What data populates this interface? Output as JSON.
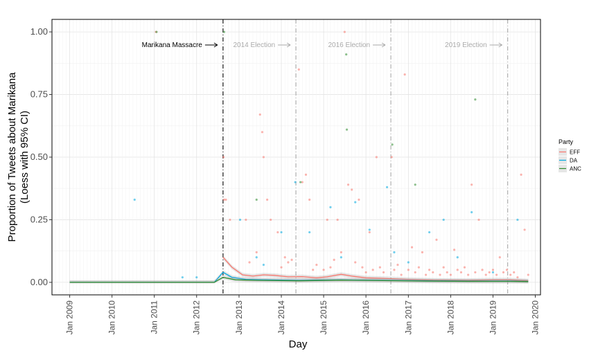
{
  "chart_data": {
    "type": "scatter",
    "xlabel": "Day",
    "ylabel_lines": [
      "Proportion of Tweets about Marikana",
      "(Loess with 95% CI)"
    ],
    "xlim": [
      "2008-08-01",
      "2020-02-15"
    ],
    "ylim": [
      -0.05,
      1.05
    ],
    "y_ticks": [
      0,
      0.25,
      0.5,
      0.75,
      1.0
    ],
    "y_tick_labels": [
      "0.00",
      "0.25",
      "0.50",
      "0.75",
      "1.00"
    ],
    "x_ticks": [
      "2009-01-01",
      "2010-01-01",
      "2011-01-01",
      "2012-01-01",
      "2013-01-01",
      "2014-01-01",
      "2015-01-01",
      "2016-01-01",
      "2017-01-01",
      "2018-01-01",
      "2019-01-01",
      "2020-01-01"
    ],
    "x_tick_labels": [
      "Jan 2009",
      "Jan 2010",
      "Jan 2011",
      "Jan 2012",
      "Jan 2013",
      "Jan 2014",
      "Jan 2015",
      "Jan 2016",
      "Jan 2017",
      "Jan 2018",
      "Jan 2019",
      "Jan 2020"
    ],
    "grid": true,
    "legend": {
      "title": "Party",
      "placement": "right",
      "entries": [
        {
          "name": "EFF",
          "color": "#F8766D"
        },
        {
          "name": "DA",
          "color": "#00A9E0"
        },
        {
          "name": "ANC",
          "color": "#2E8B2E"
        }
      ]
    },
    "event_lines": [
      {
        "date": "2012-08-16",
        "label": "Marikana Massacre",
        "color": "#000000",
        "label_side": "left"
      },
      {
        "date": "2014-05-07",
        "label": "2014 Election",
        "color": "#AAAAAA",
        "label_side": "left"
      },
      {
        "date": "2016-08-03",
        "label": "2016 Election",
        "color": "#AAAAAA",
        "label_side": "left"
      },
      {
        "date": "2019-05-08",
        "label": "2019 Election",
        "color": "#AAAAAA",
        "label_side": "left"
      }
    ],
    "series": [
      {
        "name": "EFF",
        "smooth": [
          [
            "2012-08-16",
            0.1
          ],
          [
            "2012-11-01",
            0.06
          ],
          [
            "2013-02-01",
            0.03
          ],
          [
            "2013-05-01",
            0.025
          ],
          [
            "2013-08-01",
            0.03
          ],
          [
            "2013-11-01",
            0.028
          ],
          [
            "2014-03-01",
            0.022
          ],
          [
            "2014-07-01",
            0.023
          ],
          [
            "2014-11-01",
            0.018
          ],
          [
            "2015-02-01",
            0.022
          ],
          [
            "2015-06-01",
            0.032
          ],
          [
            "2015-09-01",
            0.025
          ],
          [
            "2016-01-01",
            0.018
          ],
          [
            "2016-06-01",
            0.016
          ],
          [
            "2017-01-01",
            0.012
          ],
          [
            "2017-08-01",
            0.009
          ],
          [
            "2018-06-01",
            0.008
          ],
          [
            "2019-01-01",
            0.01
          ],
          [
            "2019-06-01",
            0.01
          ],
          [
            "2019-11-01",
            0.006
          ]
        ],
        "points": [
          [
            "2011-01-15",
            1.0
          ],
          [
            "2012-08-20",
            0.5
          ],
          [
            "2012-08-25",
            0.33
          ],
          [
            "2012-09-10",
            0.33
          ],
          [
            "2012-10-15",
            0.25
          ],
          [
            "2013-03-01",
            0.25
          ],
          [
            "2013-07-01",
            0.67
          ],
          [
            "2013-07-20",
            0.6
          ],
          [
            "2013-08-01",
            0.5
          ],
          [
            "2013-09-01",
            0.33
          ],
          [
            "2013-10-01",
            0.25
          ],
          [
            "2013-12-01",
            0.2
          ],
          [
            "2014-02-01",
            0.1
          ],
          [
            "2014-06-01",
            0.85
          ],
          [
            "2014-07-01",
            0.4
          ],
          [
            "2014-08-01",
            0.43
          ],
          [
            "2014-09-01",
            0.33
          ],
          [
            "2015-02-01",
            0.25
          ],
          [
            "2015-05-01",
            0.25
          ],
          [
            "2015-07-01",
            1.0
          ],
          [
            "2015-08-01",
            0.39
          ],
          [
            "2015-09-01",
            0.37
          ],
          [
            "2015-11-01",
            0.33
          ],
          [
            "2016-02-01",
            0.2
          ],
          [
            "2016-04-01",
            0.5
          ],
          [
            "2016-08-10",
            0.5
          ],
          [
            "2016-12-01",
            0.83
          ],
          [
            "2017-02-01",
            0.14
          ],
          [
            "2017-05-01",
            0.12
          ],
          [
            "2017-09-01",
            0.17
          ],
          [
            "2018-02-01",
            0.13
          ],
          [
            "2018-07-01",
            0.39
          ],
          [
            "2018-09-01",
            0.25
          ],
          [
            "2019-03-01",
            0.1
          ],
          [
            "2019-09-01",
            0.43
          ],
          [
            "2019-10-01",
            0.21
          ],
          [
            "2013-04-01",
            0.08
          ],
          [
            "2013-06-01",
            0.12
          ],
          [
            "2014-01-01",
            0.06
          ],
          [
            "2014-03-01",
            0.08
          ],
          [
            "2014-04-01",
            0.09
          ],
          [
            "2014-10-01",
            0.05
          ],
          [
            "2014-11-01",
            0.07
          ],
          [
            "2015-01-01",
            0.05
          ],
          [
            "2015-03-01",
            0.06
          ],
          [
            "2015-04-01",
            0.09
          ],
          [
            "2015-06-01",
            0.12
          ],
          [
            "2015-10-01",
            0.08
          ],
          [
            "2015-12-01",
            0.06
          ],
          [
            "2016-01-01",
            0.04
          ],
          [
            "2016-03-01",
            0.05
          ],
          [
            "2016-05-01",
            0.06
          ],
          [
            "2016-06-01",
            0.04
          ],
          [
            "2016-09-01",
            0.05
          ],
          [
            "2016-10-01",
            0.07
          ],
          [
            "2016-11-01",
            0.03
          ],
          [
            "2017-01-01",
            0.05
          ],
          [
            "2017-03-01",
            0.04
          ],
          [
            "2017-04-01",
            0.06
          ],
          [
            "2017-06-01",
            0.03
          ],
          [
            "2017-07-01",
            0.05
          ],
          [
            "2017-08-01",
            0.04
          ],
          [
            "2017-10-01",
            0.03
          ],
          [
            "2017-11-01",
            0.06
          ],
          [
            "2017-12-01",
            0.04
          ],
          [
            "2018-01-01",
            0.03
          ],
          [
            "2018-03-01",
            0.05
          ],
          [
            "2018-04-01",
            0.04
          ],
          [
            "2018-05-01",
            0.06
          ],
          [
            "2018-06-01",
            0.03
          ],
          [
            "2018-08-01",
            0.04
          ],
          [
            "2018-10-01",
            0.05
          ],
          [
            "2018-11-01",
            0.03
          ],
          [
            "2018-12-01",
            0.04
          ],
          [
            "2019-01-01",
            0.05
          ],
          [
            "2019-02-01",
            0.03
          ],
          [
            "2019-04-01",
            0.04
          ],
          [
            "2019-05-01",
            0.05
          ],
          [
            "2019-06-01",
            0.03
          ],
          [
            "2019-07-01",
            0.04
          ],
          [
            "2019-08-01",
            0.02
          ],
          [
            "2019-11-01",
            0.03
          ]
        ]
      },
      {
        "name": "DA",
        "smooth": [
          [
            "2009-01-01",
            0.0
          ],
          [
            "2010-06-01",
            0.0
          ],
          [
            "2012-06-01",
            0.0
          ],
          [
            "2012-08-16",
            0.04
          ],
          [
            "2012-11-01",
            0.02
          ],
          [
            "2013-03-01",
            0.012
          ],
          [
            "2013-09-01",
            0.01
          ],
          [
            "2014-06-01",
            0.008
          ],
          [
            "2015-06-01",
            0.01
          ],
          [
            "2016-06-01",
            0.008
          ],
          [
            "2017-06-01",
            0.006
          ],
          [
            "2018-06-01",
            0.005
          ],
          [
            "2019-06-01",
            0.005
          ],
          [
            "2019-11-01",
            0.004
          ]
        ],
        "points": [
          [
            "2010-07-15",
            0.33
          ],
          [
            "2011-09-01",
            0.02
          ],
          [
            "2012-01-01",
            0.02
          ],
          [
            "2013-01-10",
            0.25
          ],
          [
            "2013-06-01",
            0.1
          ],
          [
            "2013-08-01",
            0.07
          ],
          [
            "2014-01-01",
            0.2
          ],
          [
            "2014-05-01",
            0.4
          ],
          [
            "2014-09-01",
            0.2
          ],
          [
            "2015-03-01",
            0.3
          ],
          [
            "2015-06-01",
            0.1
          ],
          [
            "2015-10-01",
            0.32
          ],
          [
            "2016-02-01",
            0.21
          ],
          [
            "2016-07-01",
            0.38
          ],
          [
            "2016-09-01",
            0.12
          ],
          [
            "2017-01-01",
            0.08
          ],
          [
            "2017-07-01",
            0.2
          ],
          [
            "2017-11-01",
            0.25
          ],
          [
            "2018-03-01",
            0.1
          ],
          [
            "2018-07-01",
            0.28
          ],
          [
            "2019-01-01",
            0.04
          ],
          [
            "2019-08-01",
            0.25
          ]
        ]
      },
      {
        "name": "ANC",
        "smooth": [
          [
            "2009-01-01",
            0.0
          ],
          [
            "2010-06-01",
            0.0
          ],
          [
            "2012-06-01",
            0.0
          ],
          [
            "2012-08-16",
            0.02
          ],
          [
            "2012-12-01",
            0.01
          ],
          [
            "2013-06-01",
            0.008
          ],
          [
            "2014-06-01",
            0.006
          ],
          [
            "2015-06-01",
            0.009
          ],
          [
            "2016-06-01",
            0.007
          ],
          [
            "2017-06-01",
            0.005
          ],
          [
            "2018-06-01",
            0.004
          ],
          [
            "2019-06-01",
            0.004
          ],
          [
            "2019-11-01",
            0.003
          ]
        ],
        "points": [
          [
            "2011-01-20",
            1.0
          ],
          [
            "2012-08-25",
            1.0
          ],
          [
            "2013-06-01",
            0.33
          ],
          [
            "2014-06-15",
            0.4
          ],
          [
            "2015-07-15",
            0.91
          ],
          [
            "2015-07-20",
            0.61
          ],
          [
            "2016-08-15",
            0.55
          ],
          [
            "2017-03-01",
            0.39
          ],
          [
            "2018-08-01",
            0.73
          ]
        ]
      }
    ]
  }
}
